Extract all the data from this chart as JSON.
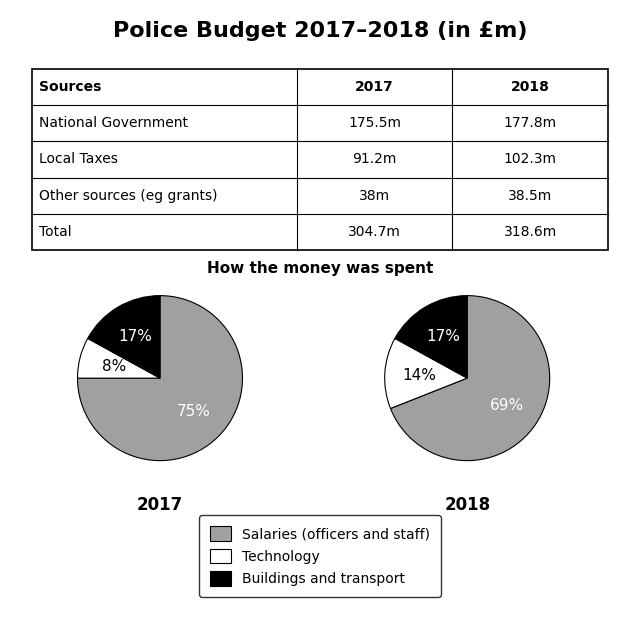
{
  "title": "Police Budget 2017–2018 (in £m)",
  "table": {
    "headers": [
      "Sources",
      "2017",
      "2018"
    ],
    "rows": [
      [
        "National Government",
        "175.5m",
        "177.8m"
      ],
      [
        "Local Taxes",
        "91.2m",
        "102.3m"
      ],
      [
        "Other sources (eg grants)",
        "38m",
        "38.5m"
      ],
      [
        "Total",
        "304.7m",
        "318.6m"
      ]
    ]
  },
  "pie_title": "How the money was spent",
  "pie_2017": {
    "label": "2017",
    "values": [
      75,
      8,
      17
    ],
    "colors": [
      "#a0a0a0",
      "#ffffff",
      "#000000"
    ],
    "pct_labels": [
      "75%",
      "8%",
      "17%"
    ],
    "pct_colors": [
      "white",
      "black",
      "white"
    ]
  },
  "pie_2018": {
    "label": "2018",
    "values": [
      69,
      14,
      17
    ],
    "colors": [
      "#a0a0a0",
      "#ffffff",
      "#000000"
    ],
    "pct_labels": [
      "69%",
      "14%",
      "17%"
    ],
    "pct_colors": [
      "white",
      "black",
      "white"
    ]
  },
  "legend_labels": [
    "Salaries (officers and staff)",
    "Technology",
    "Buildings and transport"
  ],
  "legend_colors": [
    "#a0a0a0",
    "#ffffff",
    "#000000"
  ],
  "background_color": "#ffffff",
  "title_fontsize": 16,
  "table_fontsize": 10,
  "pie_title_fontsize": 11,
  "pie_label_fontsize": 11,
  "year_label_fontsize": 12,
  "legend_fontsize": 10
}
